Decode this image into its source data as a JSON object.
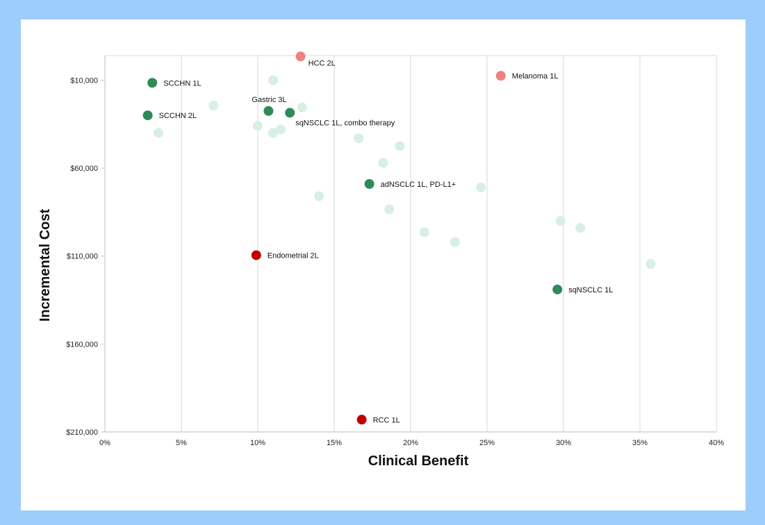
{
  "chart_data": {
    "type": "scatter",
    "title": "",
    "xlabel": "Clinical Benefit",
    "ylabel": "Incremental Cost",
    "xlim": [
      0,
      0.4
    ],
    "ylim": [
      210000,
      -4000
    ],
    "y_axis_reversed": true,
    "grid": {
      "x": true,
      "y": false
    },
    "legend": "none",
    "x_ticks": [
      0,
      0.05,
      0.1,
      0.15,
      0.2,
      0.25,
      0.3,
      0.35,
      0.4
    ],
    "x_tick_labels": [
      "0%",
      "5%",
      "10%",
      "15%",
      "20%",
      "25%",
      "30%",
      "35%",
      "40%"
    ],
    "y_ticks": [
      10000,
      60000,
      110000,
      160000,
      210000
    ],
    "y_tick_labels": [
      "$10,000",
      "$60,000",
      "$110,000",
      "$160,000",
      "$210,000"
    ],
    "colors": {
      "background_points": "#d8efe3",
      "green": "#2e8b57",
      "pink": "#f08080",
      "red": "#c00000"
    },
    "series": [
      {
        "group": "background_points",
        "color": "#d8efe3",
        "points": [
          {
            "x": 0.11,
            "y": 10000
          },
          {
            "x": 0.071,
            "y": 24500
          },
          {
            "x": 0.129,
            "y": 25500
          },
          {
            "x": 0.1,
            "y": 36000
          },
          {
            "x": 0.11,
            "y": 40000
          },
          {
            "x": 0.115,
            "y": 38000
          },
          {
            "x": 0.035,
            "y": 40000
          },
          {
            "x": 0.166,
            "y": 43000
          },
          {
            "x": 0.193,
            "y": 47500
          },
          {
            "x": 0.182,
            "y": 57000
          },
          {
            "x": 0.246,
            "y": 71000
          },
          {
            "x": 0.14,
            "y": 76000
          },
          {
            "x": 0.186,
            "y": 83500
          },
          {
            "x": 0.298,
            "y": 90000
          },
          {
            "x": 0.311,
            "y": 94000
          },
          {
            "x": 0.209,
            "y": 96500
          },
          {
            "x": 0.229,
            "y": 102000
          },
          {
            "x": 0.357,
            "y": 114500
          }
        ]
      },
      {
        "group": "green",
        "color": "#2e8b57",
        "points": [
          {
            "x": 0.031,
            "y": 11500,
            "label": "SCCHN 1L"
          },
          {
            "x": 0.028,
            "y": 30000,
            "label": "SCCHN 2L"
          },
          {
            "x": 0.107,
            "y": 27500,
            "label": "Gastric 3L"
          },
          {
            "x": 0.121,
            "y": 28500,
            "label": "sqNSCLC 1L, combo therapy"
          },
          {
            "x": 0.173,
            "y": 69000,
            "label": "adNSCLC 1L, PD-L1+"
          },
          {
            "x": 0.296,
            "y": 129000,
            "label": "sqNSCLC 1L"
          }
        ]
      },
      {
        "group": "pink",
        "color": "#f08080",
        "points": [
          {
            "x": 0.128,
            "y": -3500,
            "label": "HCC 2L"
          },
          {
            "x": 0.259,
            "y": 7500,
            "label": "Melanoma 1L"
          }
        ]
      },
      {
        "group": "red",
        "color": "#c00000",
        "points": [
          {
            "x": 0.099,
            "y": 109500,
            "label": "Endometrial 2L"
          },
          {
            "x": 0.168,
            "y": 203000,
            "label": "RCC 1L"
          }
        ]
      }
    ]
  }
}
